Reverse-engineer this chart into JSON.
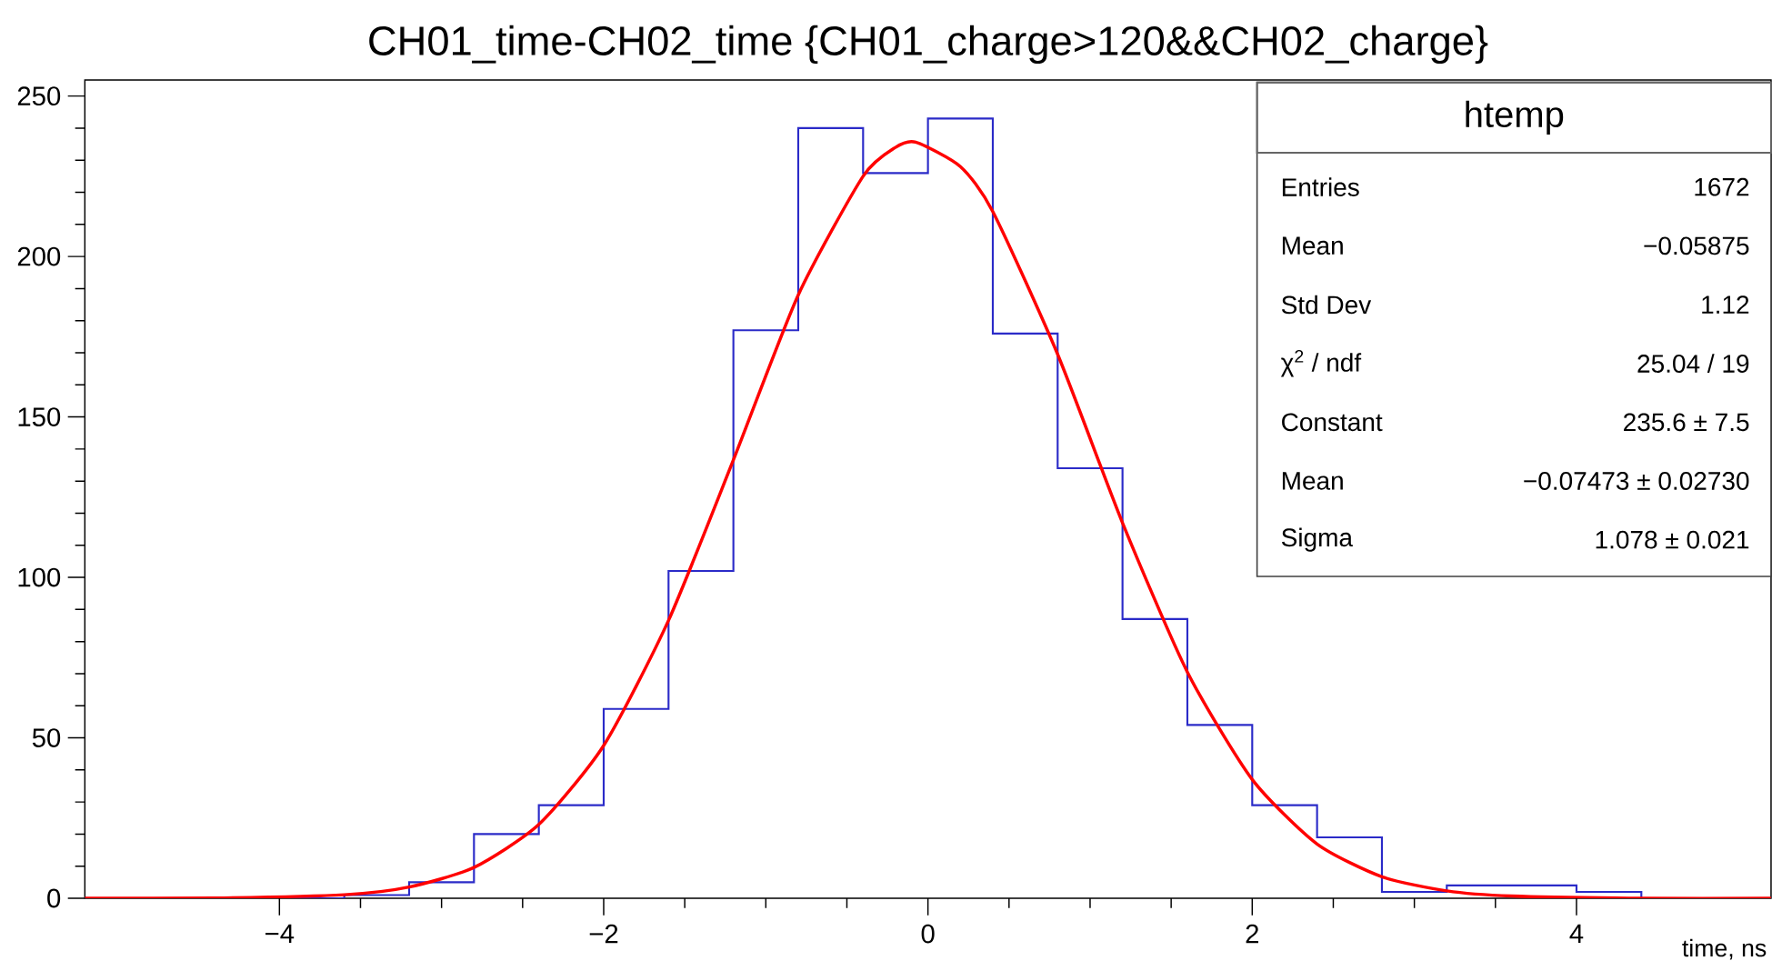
{
  "chart_data": {
    "type": "histogram",
    "title": "CH01_time-CH02_time {CH01_charge>120&&CH02_charge}",
    "xlabel": "time, ns",
    "bins": [
      -5.2,
      -4.8,
      -4.4,
      -4.0,
      -3.6,
      -3.2,
      -2.8,
      -2.4,
      -2.0,
      -1.6,
      -1.2,
      -0.8,
      -0.4,
      0,
      0.4,
      0.8,
      1.2,
      1.6,
      2.0,
      2.4,
      2.8,
      3.2,
      3.6,
      4.0,
      4.4,
      4.8,
      5.2
    ],
    "values": [
      0,
      0,
      0,
      0,
      1,
      5,
      20,
      29,
      59,
      102,
      177,
      240,
      226,
      243,
      176,
      134,
      87,
      54,
      29,
      19,
      2,
      4,
      4,
      2,
      0,
      0
    ],
    "color": "#2b2bc8",
    "series": [
      {
        "type": "line",
        "color": "#ff0000",
        "x": [
          -5.2,
          -4.4,
          -3.6,
          -3.2,
          -2.8,
          -2.4,
          -2.0,
          -1.6,
          -1.2,
          -0.8,
          -0.4,
          -0.2,
          -0.075,
          0.2,
          0.4,
          0.8,
          1.2,
          1.6,
          2.0,
          2.4,
          2.8,
          3.2,
          3.6,
          4.4,
          5.2
        ],
        "values": [
          0,
          0.1,
          1.1,
          3.5,
          9.6,
          23,
          47.6,
          86.6,
          136.6,
          188,
          225,
          234,
          235.6,
          228,
          214,
          169.5,
          117,
          70.5,
          37,
          16.9,
          6.7,
          2.3,
          0.7,
          0,
          0
        ]
      }
    ],
    "xlim": [
      -5.2,
      5.2
    ],
    "ylim": [
      0,
      255
    ],
    "xticks": [
      {
        "value": -4,
        "label": "−4"
      },
      {
        "value": -2,
        "label": "−2"
      },
      0,
      2,
      4
    ],
    "yticks": [
      0,
      50,
      100,
      150,
      200,
      250
    ],
    "grid": false,
    "annotations": [
      "htemp",
      "Entries",
      "1672",
      "Mean",
      "−0.05875",
      "Std Dev",
      "1.12",
      "χ$^{2}$ / ndf",
      "25.04 / 19",
      "Constant",
      "235.6 ± 7.5",
      "Mean",
      "−0.07473 ± 0.02730",
      "Sigma",
      "1.078 ± 0.021"
    ]
  }
}
